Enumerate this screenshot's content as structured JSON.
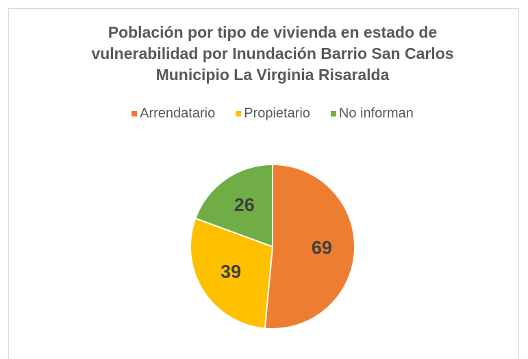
{
  "chart_data": {
    "type": "pie",
    "title": "Población por tipo de vivienda en estado de vulnerabilidad por Inundación Barrio San Carlos Municipio La Virginia Risaralda",
    "categories": [
      "Arrendatario",
      "Propietario",
      "No informan"
    ],
    "values": [
      69,
      39,
      26
    ],
    "colors": [
      "#ed7d31",
      "#ffc000",
      "#70ad47"
    ],
    "legend": "top"
  }
}
